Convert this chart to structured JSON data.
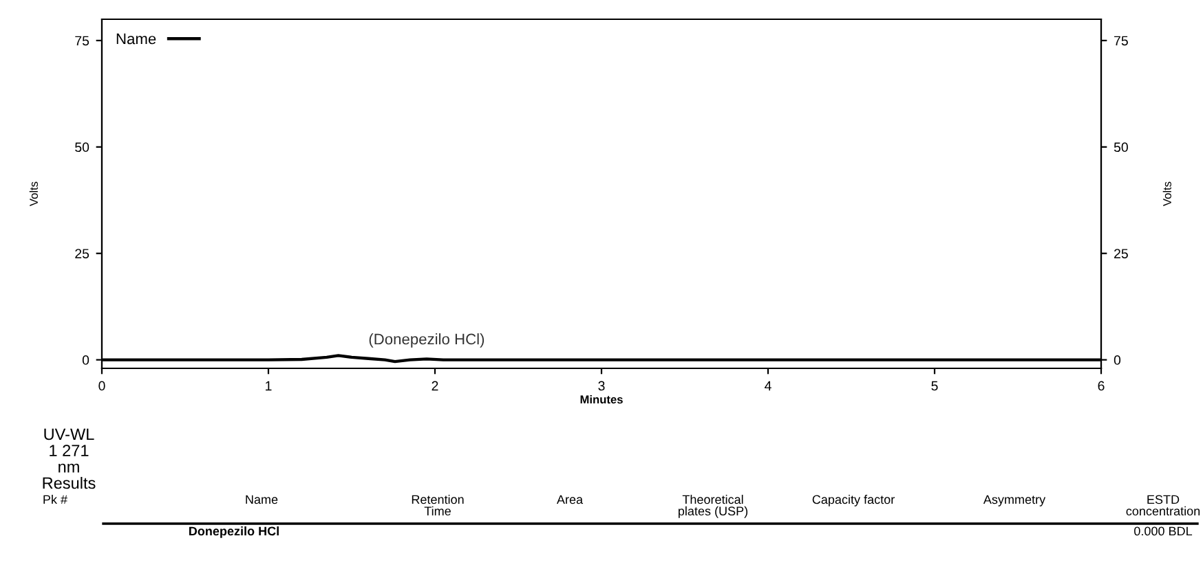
{
  "chart_data": {
    "type": "line",
    "xlabel": "Minutes",
    "ylabel": "Volts",
    "y2label": "Volts",
    "x": [
      0,
      1.0,
      1.2,
      1.35,
      1.42,
      1.5,
      1.6,
      1.7,
      1.76,
      1.85,
      1.95,
      2.05,
      2.2,
      3,
      4,
      5,
      6
    ],
    "series": [
      {
        "name": "Name",
        "color": "#000000",
        "values": [
          0,
          0,
          0.1,
          0.6,
          1.0,
          0.6,
          0.3,
          0.0,
          -0.4,
          0,
          0.2,
          0,
          0,
          0,
          0,
          0,
          0
        ]
      }
    ],
    "xlim": [
      0,
      6
    ],
    "xticks": [
      0,
      1,
      2,
      3,
      4,
      5,
      6
    ],
    "ylim": [
      -2,
      80
    ],
    "yticks": [
      0,
      25,
      50,
      75
    ],
    "y2lim": [
      -2,
      80
    ],
    "y2ticks": [
      0,
      25,
      50,
      75
    ],
    "legend": "top left",
    "grid": false,
    "marker": "none",
    "line_style": "solid",
    "annotations": [
      {
        "text": "(Donepezilo HCl)",
        "x": 1.95,
        "y": 0.2
      },
      "UV-WL\n1 271\nnm\nResults",
      "Pk #",
      "Name",
      "Retention\nTime",
      "Area",
      "Theoretical\nplates (USP)",
      "Capacity factor",
      "Asymmetry",
      "ESTD\nconcentration",
      "Donepezilo HCl",
      "0.000 BDL"
    ]
  }
}
